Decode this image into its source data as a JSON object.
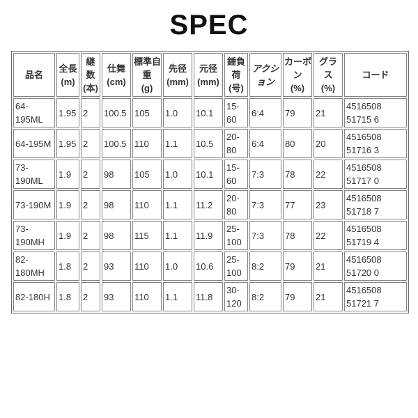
{
  "title": "SPEC",
  "colors": {
    "background": "#ffffff",
    "text": "#333333",
    "title_text": "#111111",
    "table_outer_border": "#6b6b6b",
    "cell_border": "#848484"
  },
  "table": {
    "headers": [
      {
        "key": "product",
        "label": "品名",
        "lines": [
          "品名"
        ]
      },
      {
        "key": "length-m",
        "label": "全長(m)",
        "lines": [
          "全長",
          "(m)"
        ]
      },
      {
        "key": "pieces",
        "label": "継数(本)",
        "lines": [
          "継",
          "数",
          "(本)"
        ]
      },
      {
        "key": "closed-length-cm",
        "label": "仕舞(cm)",
        "lines": [
          "仕舞",
          "(cm)"
        ]
      },
      {
        "key": "weight-g",
        "label": "標準自重(g)",
        "lines": [
          "標準自",
          "重",
          "(g)"
        ]
      },
      {
        "key": "tip-dia-mm",
        "label": "先径(mm)",
        "lines": [
          "先径",
          "(mm)"
        ]
      },
      {
        "key": "butt-dia-mm",
        "label": "元径(mm)",
        "lines": [
          "元径",
          "(mm)"
        ]
      },
      {
        "key": "sinker-load",
        "label": "錘負荷(号)",
        "lines": [
          "錘負",
          "荷",
          "(号)"
        ]
      },
      {
        "key": "action",
        "label": "アクション",
        "lines": [
          "アクシ",
          "ョン"
        ],
        "italic": true
      },
      {
        "key": "carbon-pct",
        "label": "カーボン(%)",
        "lines": [
          "カーボ",
          "ン",
          "(%)"
        ]
      },
      {
        "key": "glass-pct",
        "label": "グラス(%)",
        "lines": [
          "グラ",
          "ス",
          "(%)"
        ]
      },
      {
        "key": "code",
        "label": "コード",
        "lines": [
          "コード"
        ]
      }
    ],
    "rows": [
      [
        "64-195ML",
        "1.95",
        "2",
        "100.5",
        "105",
        "1.0",
        "10.1",
        "15-60",
        "6:4",
        "79",
        "21",
        "4516508 51715 6"
      ],
      [
        "64-195M",
        "1.95",
        "2",
        "100.5",
        "110",
        "1.1",
        "10.5",
        "20-80",
        "6:4",
        "80",
        "20",
        "4516508 51716 3"
      ],
      [
        "73-190ML",
        "1.9",
        "2",
        "98",
        "105",
        "1.0",
        "10.1",
        "15-60",
        "7:3",
        "78",
        "22",
        "4516508 51717 0"
      ],
      [
        "73-190M",
        "1.9",
        "2",
        "98",
        "110",
        "1.1",
        "11.2",
        "20-80",
        "7:3",
        "77",
        "23",
        "4516508 51718 7"
      ],
      [
        "73-190MH",
        "1.9",
        "2",
        "98",
        "115",
        "1.1",
        "11.9",
        "25-100",
        "7:3",
        "78",
        "22",
        "4516508 51719 4"
      ],
      [
        "82-180MH",
        "1.8",
        "2",
        "93",
        "110",
        "1.0",
        "10.6",
        "25-100",
        "8:2",
        "79",
        "21",
        "4516508 51720 0"
      ],
      [
        "82-180H",
        "1.8",
        "2",
        "93",
        "110",
        "1.1",
        "11.8",
        "30-120",
        "8:2",
        "79",
        "21",
        "4516508 51721 7"
      ]
    ]
  }
}
